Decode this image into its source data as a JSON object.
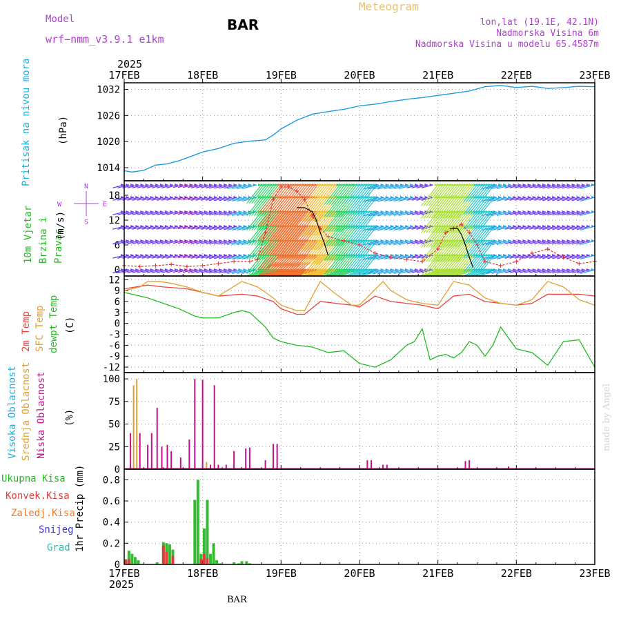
{
  "header": {
    "model_label": "Model",
    "model_name": "wrf−nmm_v3.9.1 e1km",
    "station": "BAR",
    "title": "Meteogram",
    "lonlat": "lon,lat (19.1E, 42.1N)",
    "elevation": "Nadmorska Visina 6m",
    "model_elevation": "Nadmorska Visina u modelu 65.4587m",
    "year_top": "2025",
    "year_bottom": "2025",
    "footer_station": "BAR",
    "credit": "made by Angel"
  },
  "colors": {
    "pressure": "#1e9be0",
    "temp2m": "#e8453c",
    "sfc_temp": "#e0a030",
    "dewpoint": "#22bb22",
    "cloud_high": "#1ab0e0",
    "cloud_mid": "#e0a030",
    "cloud_low": "#c0108a",
    "precip_total": "#33bb33",
    "precip_conv": "#e23b3b",
    "precip_frozen": "#f07a2a",
    "snow": "#3a3ad8",
    "hail": "#20c0b0",
    "wind_speed": "#e03030",
    "wind_gust": "#000000",
    "compass": "#b040d0"
  },
  "chart_data": [
    {
      "type": "line",
      "panel": "pressure",
      "ylabel": "Pritisak na nivou mora",
      "unit": "(hPa)",
      "x_ticks": [
        "17FEB",
        "18FEB",
        "19FEB",
        "20FEB",
        "21FEB",
        "22FEB",
        "23FEB"
      ],
      "ylim": [
        1011,
        1033.5
      ],
      "y_ticks": [
        1014,
        1020,
        1026,
        1032
      ],
      "grid": true,
      "series": [
        {
          "x": [
            0,
            0.1,
            0.25,
            0.4,
            0.55,
            0.7,
            0.85,
            1.0,
            1.2,
            1.4,
            1.6,
            1.8,
            1.9,
            2.0,
            2.2,
            2.4,
            2.6,
            2.8,
            3.0,
            3.2,
            3.4,
            3.6,
            3.8,
            4.0,
            4.2,
            4.4,
            4.6,
            4.8,
            5.0,
            5.2,
            5.4,
            5.6,
            5.8,
            6.0
          ],
          "y": [
            1013.3,
            1013.0,
            1013.4,
            1014.6,
            1014.9,
            1015.6,
            1016.6,
            1017.6,
            1018.4,
            1019.6,
            1020.1,
            1020.4,
            1021.5,
            1022.9,
            1024.9,
            1026.3,
            1026.9,
            1027.4,
            1028.2,
            1028.6,
            1029.2,
            1029.7,
            1030.1,
            1030.6,
            1031.1,
            1031.6,
            1032.6,
            1032.9,
            1032.4,
            1032.7,
            1032.2,
            1032.4,
            1032.7,
            1032.6
          ]
        }
      ]
    },
    {
      "type": "line",
      "panel": "wind",
      "ylabel": "10m Vjetar Brzina i Pravac",
      "unit": "(m/s)",
      "compass": {
        "n": "N",
        "s": "S",
        "e": "E",
        "w": "W"
      },
      "ylim": [
        -1.5,
        21.5
      ],
      "y_ticks": [
        0,
        6,
        12,
        18
      ],
      "grid": true,
      "series": [
        {
          "name": "speed",
          "x": [
            0,
            0.2,
            0.4,
            0.6,
            0.8,
            1.0,
            1.2,
            1.4,
            1.6,
            1.7,
            1.8,
            1.9,
            2.0,
            2.1,
            2.2,
            2.3,
            2.4,
            2.5,
            2.6,
            2.8,
            3.0,
            3.2,
            3.4,
            3.6,
            3.8,
            4.0,
            4.1,
            4.2,
            4.3,
            4.4,
            4.5,
            4.6,
            4.8,
            5.0,
            5.2,
            5.4,
            5.6,
            5.8,
            6.0
          ],
          "y": [
            1.0,
            0.8,
            1.0,
            1.3,
            0.8,
            1.0,
            1.5,
            2.0,
            2.0,
            2.5,
            9.0,
            17.0,
            20.0,
            20.0,
            19.0,
            17.0,
            13.0,
            10.0,
            8.0,
            7.0,
            6.0,
            4.0,
            3.0,
            2.5,
            2.0,
            5.0,
            9.0,
            10.0,
            11.0,
            9.0,
            6.0,
            2.0,
            1.0,
            2.0,
            4.0,
            5.0,
            3.0,
            1.5,
            2.0
          ]
        },
        {
          "name": "gust",
          "x": [
            2.2,
            2.3,
            2.4,
            2.45,
            2.5,
            2.55,
            2.6
          ],
          "y": [
            15.0,
            15.0,
            14.0,
            12.0,
            9.0,
            6.5,
            3.5
          ]
        },
        {
          "name": "gust",
          "x": [
            4.15,
            4.25,
            4.3,
            4.35,
            4.4,
            4.45
          ],
          "y": [
            10.0,
            10.0,
            8.5,
            6.0,
            3.0,
            0.5
          ]
        }
      ],
      "barb_rows": [
        0,
        3.5,
        7,
        10.5,
        14,
        17.5,
        20.5
      ],
      "barb_times": [
        0,
        0.25,
        0.5,
        0.75,
        1.0,
        1.25,
        1.5,
        1.75,
        2.0,
        2.25,
        2.5,
        2.75,
        3.0,
        3.25,
        3.5,
        3.75,
        4.0,
        4.25,
        4.5,
        4.75,
        5.0,
        5.25,
        5.5,
        5.75,
        6.0
      ],
      "barb_speed": [
        3,
        3,
        3,
        2,
        3,
        4,
        5,
        10,
        18,
        18,
        14,
        11,
        9,
        6,
        5,
        3,
        12,
        12,
        9,
        5,
        3,
        3,
        4,
        4,
        5
      ]
    },
    {
      "type": "line",
      "panel": "temperature",
      "ylabels": [
        "2m Temp",
        "SFC Temp",
        "dewpt Temp"
      ],
      "unit": "(C)",
      "ylim": [
        -13.5,
        13
      ],
      "y_ticks": [
        12,
        9,
        6,
        3,
        0,
        -3,
        -6,
        -9,
        -12
      ],
      "grid": true,
      "series": [
        {
          "name": "2m Temp",
          "x": [
            0,
            0.3,
            0.5,
            0.8,
            1.0,
            1.2,
            1.5,
            1.7,
            1.9,
            2.0,
            2.2,
            2.3,
            2.5,
            2.7,
            2.9,
            3.0,
            3.2,
            3.4,
            3.6,
            3.8,
            4.0,
            4.2,
            4.4,
            4.6,
            4.8,
            5.0,
            5.2,
            5.4,
            5.6,
            5.8,
            6.0
          ],
          "y": [
            9.5,
            10.5,
            10.0,
            9.5,
            8.5,
            7.5,
            8.0,
            7.5,
            6.0,
            4.0,
            2.5,
            2.5,
            6.0,
            5.5,
            5.0,
            4.5,
            7.5,
            6.0,
            5.5,
            5.0,
            4.0,
            7.5,
            8.0,
            6.0,
            5.5,
            5.0,
            5.5,
            8.0,
            8.0,
            8.0,
            7.5
          ]
        },
        {
          "name": "SFC Temp",
          "x": [
            0,
            0.2,
            0.3,
            0.45,
            0.6,
            0.8,
            1.0,
            1.2,
            1.5,
            1.7,
            1.9,
            2.0,
            2.2,
            2.3,
            2.5,
            2.7,
            2.9,
            3.0,
            3.3,
            3.4,
            3.6,
            3.8,
            4.0,
            4.2,
            4.4,
            4.6,
            4.8,
            5.0,
            5.2,
            5.4,
            5.6,
            5.8,
            6.0
          ],
          "y": [
            9.0,
            10.0,
            11.5,
            11.5,
            11.0,
            10.0,
            8.5,
            7.5,
            11.5,
            10.0,
            7.0,
            5.0,
            3.5,
            3.5,
            11.5,
            8.0,
            5.0,
            5.0,
            11.5,
            9.0,
            6.5,
            5.5,
            5.0,
            11.5,
            10.5,
            7.0,
            5.5,
            5.0,
            6.5,
            11.5,
            10.0,
            6.5,
            5.0
          ]
        },
        {
          "name": "dewpt Temp",
          "x": [
            0,
            0.3,
            0.5,
            0.7,
            0.9,
            1.0,
            1.2,
            1.4,
            1.5,
            1.6,
            1.7,
            1.8,
            1.9,
            2.0,
            2.2,
            2.4,
            2.6,
            2.8,
            3.0,
            3.2,
            3.4,
            3.6,
            3.7,
            3.8,
            3.9,
            4.0,
            4.1,
            4.2,
            4.3,
            4.4,
            4.5,
            4.6,
            4.7,
            4.8,
            5.0,
            5.2,
            5.4,
            5.6,
            5.8,
            6.0
          ],
          "y": [
            8.5,
            7.0,
            5.5,
            4.0,
            2.0,
            1.5,
            1.5,
            3.0,
            3.5,
            3.0,
            1.0,
            -1.0,
            -4.0,
            -5.0,
            -6.0,
            -6.5,
            -8.0,
            -7.5,
            -11.0,
            -12.0,
            -10.0,
            -6.0,
            -5.0,
            -1.5,
            -10.0,
            -9.0,
            -8.5,
            -9.5,
            -8.0,
            -5.0,
            -6.0,
            -9.0,
            -6.0,
            -1.0,
            -7.0,
            -8.0,
            -11.5,
            -5.0,
            -4.5,
            -12.0
          ]
        }
      ]
    },
    {
      "type": "bar",
      "panel": "cloud",
      "ylabels": [
        "Visoka Oblacnost",
        "Srednja Oblacnost",
        "Niska Oblacnost"
      ],
      "unit": "(%)",
      "ylim": [
        0,
        107
      ],
      "y_ticks": [
        0,
        25,
        50,
        75,
        100
      ],
      "grid": true,
      "series": [
        {
          "name": "Niska Oblacnost",
          "x": [
            0.08,
            0.2,
            0.3,
            0.35,
            0.42,
            0.48,
            0.55,
            0.6,
            0.72,
            0.83,
            0.9,
            1.0,
            1.1,
            1.15,
            1.2,
            1.3,
            1.4,
            1.55,
            1.6,
            1.8,
            1.9,
            1.95,
            3.1,
            3.15,
            3.3,
            3.35,
            4.35,
            4.4,
            4.9
          ],
          "y": [
            40,
            40,
            27,
            40,
            68,
            25,
            27,
            20,
            13,
            33,
            100,
            99,
            5,
            93,
            5,
            5,
            20,
            23,
            24,
            10,
            28,
            28,
            10,
            10,
            5,
            5,
            9,
            10,
            3
          ]
        },
        {
          "name": "Srednja Oblacnost",
          "x": [
            0.12,
            0.16,
            1.05
          ],
          "y": [
            93,
            100,
            8
          ]
        },
        {
          "name": "Visoka Oblacnost",
          "x": [
            0.14
          ],
          "y": [
            0
          ]
        }
      ]
    },
    {
      "type": "bar",
      "panel": "precip",
      "ylabels": [
        "Ukupna Kisa",
        "Konvek.Kisa",
        "Zaledj.Kisa",
        "Snijeg",
        "Grad"
      ],
      "unit": "1hr Precip (mm)",
      "ylim": [
        0,
        0.9
      ],
      "y_ticks": [
        0,
        0.2,
        0.4,
        0.6,
        0.8
      ],
      "grid": true,
      "series": [
        {
          "name": "Ukupna Kisa",
          "x": [
            0.02,
            0.06,
            0.1,
            0.14,
            0.18,
            0.42,
            0.5,
            0.54,
            0.58,
            0.62,
            0.9,
            0.94,
            0.98,
            1.02,
            1.06,
            1.1,
            1.14,
            1.18,
            1.22,
            1.4,
            1.46,
            1.5,
            1.56,
            1.6
          ],
          "y": [
            0.05,
            0.13,
            0.1,
            0.07,
            0.04,
            0.02,
            0.21,
            0.2,
            0.19,
            0.14,
            0.61,
            0.8,
            0.1,
            0.34,
            0.61,
            0.1,
            0.2,
            0.04,
            0.01,
            0.02,
            0.01,
            0.03,
            0.03,
            0.01
          ]
        },
        {
          "name": "Konvek.Kisa",
          "x": [
            0.02,
            0.06,
            0.5,
            0.54,
            0.62,
            0.98,
            1.02,
            1.06
          ],
          "y": [
            0.04,
            0.05,
            0.18,
            0.12,
            0.08,
            0.05,
            0.1,
            0.06
          ]
        }
      ]
    }
  ]
}
